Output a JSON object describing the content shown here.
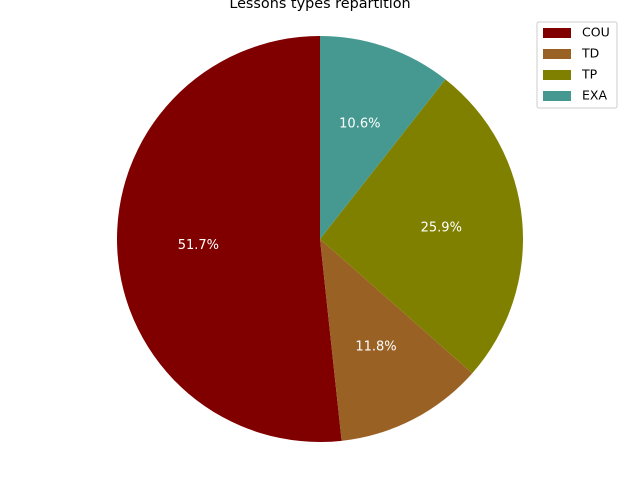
{
  "chart_data": {
    "type": "pie",
    "title": "Lessons types repartition",
    "categories": [
      "COU",
      "TD",
      "TP",
      "EXA"
    ],
    "values": [
      51.7,
      11.8,
      25.9,
      10.6
    ],
    "labels": [
      "51.7%",
      "11.8%",
      "25.9%",
      "10.6%"
    ],
    "colors": [
      "#800000",
      "#9a6124",
      "#808000",
      "#469990"
    ],
    "start_angle_deg": 90,
    "direction": "counterclockwise",
    "legend_position": "top-right"
  }
}
